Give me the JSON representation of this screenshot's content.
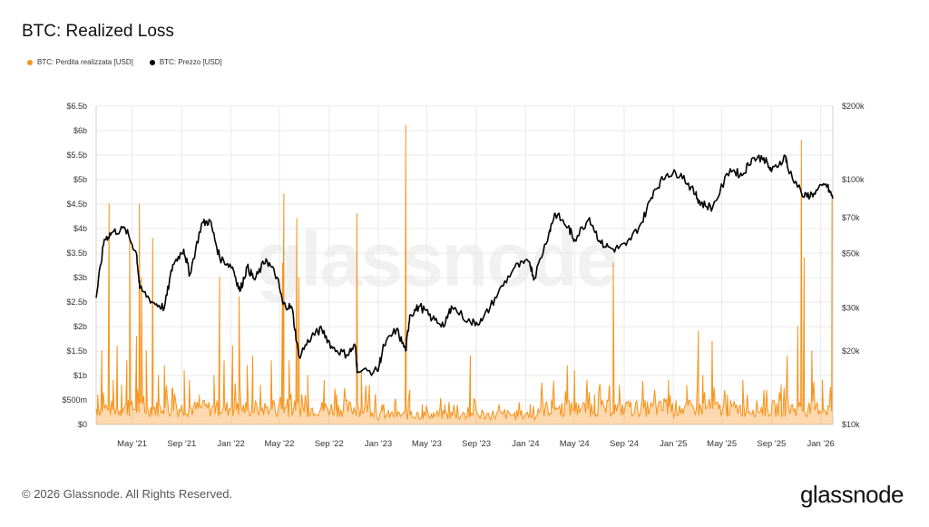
{
  "title": "BTC: Realized Loss",
  "legend": {
    "loss_label": "BTC: Perdita realizzata [USD]",
    "price_label": "BTC: Prezzo [USD]"
  },
  "colors": {
    "loss": "#f7931a",
    "price": "#000000",
    "grid": "#e9e9e9"
  },
  "watermark": "glassnode",
  "footer": {
    "copyright": "© 2026 Glassnode. All Rights Reserved.",
    "logo": "glassnode"
  },
  "chart_data": {
    "type": "line",
    "title": "BTC: Realized Loss",
    "x_ticks": [
      "May '21",
      "Sep '21",
      "Jan '22",
      "May '22",
      "Sep '22",
      "Jan '23",
      "May '23",
      "Sep '23",
      "Jan '24",
      "May '24",
      "Sep '24",
      "Jan '25",
      "May '25",
      "Sep '25",
      "Jan '26"
    ],
    "x_range": [
      "2021-02-01",
      "2026-01-31"
    ],
    "left_axis": {
      "ticks": [
        "$0",
        "$500m",
        "$1b",
        "$1.5b",
        "$2b",
        "$2.5b",
        "$3b",
        "$3.5b",
        "$4b",
        "$4.5b",
        "$5b",
        "$5.5b",
        "$6b",
        "$6.5b"
      ],
      "ylim": [
        0,
        6.5
      ],
      "unit": "billion USD"
    },
    "right_axis": {
      "ticks": [
        "$10k",
        "$20k",
        "$30k",
        "$50k",
        "$70k",
        "$100k",
        "$200k"
      ],
      "ylim": [
        10000,
        200000
      ],
      "scale": "log"
    },
    "grid": true,
    "series": [
      {
        "name": "BTC: Perdita realizzata [USD]",
        "axis": "left",
        "style": "area",
        "baseline_billion": 0.15,
        "points": [
          [
            "2021-02-05",
            0.6
          ],
          [
            "2021-02-15",
            1.5
          ],
          [
            "2021-02-25",
            0.4
          ],
          [
            "2021-03-05",
            4.5
          ],
          [
            "2021-03-15",
            0.9
          ],
          [
            "2021-03-25",
            1.6
          ],
          [
            "2021-04-05",
            0.8
          ],
          [
            "2021-04-18",
            1.3
          ],
          [
            "2021-04-25",
            3.8
          ],
          [
            "2021-05-12",
            1.8
          ],
          [
            "2021-05-19",
            4.5
          ],
          [
            "2021-05-24",
            3.0
          ],
          [
            "2021-06-05",
            1.5
          ],
          [
            "2021-06-21",
            3.8
          ],
          [
            "2021-07-05",
            1.0
          ],
          [
            "2021-07-20",
            1.2
          ],
          [
            "2021-08-10",
            0.7
          ],
          [
            "2021-09-07",
            1.1
          ],
          [
            "2021-09-20",
            0.9
          ],
          [
            "2021-10-15",
            0.6
          ],
          [
            "2021-11-20",
            1.0
          ],
          [
            "2021-12-04",
            3.0
          ],
          [
            "2021-12-15",
            1.3
          ],
          [
            "2022-01-05",
            1.6
          ],
          [
            "2022-01-21",
            2.6
          ],
          [
            "2022-02-10",
            1.2
          ],
          [
            "2022-02-24",
            1.4
          ],
          [
            "2022-03-15",
            0.8
          ],
          [
            "2022-04-11",
            1.3
          ],
          [
            "2022-05-09",
            3.3
          ],
          [
            "2022-05-12",
            4.7
          ],
          [
            "2022-05-25",
            1.3
          ],
          [
            "2022-06-13",
            4.2
          ],
          [
            "2022-06-18",
            3.0
          ],
          [
            "2022-07-10",
            1.0
          ],
          [
            "2022-08-20",
            0.9
          ],
          [
            "2022-09-20",
            0.6
          ],
          [
            "2022-10-15",
            0.5
          ],
          [
            "2022-11-09",
            4.3
          ],
          [
            "2022-11-20",
            1.1
          ],
          [
            "2022-12-10",
            0.8
          ],
          [
            "2023-01-10",
            0.4
          ],
          [
            "2023-02-10",
            0.4
          ],
          [
            "2023-03-10",
            6.1
          ],
          [
            "2023-03-20",
            0.7
          ],
          [
            "2023-04-20",
            0.4
          ],
          [
            "2023-06-15",
            0.4
          ],
          [
            "2023-08-17",
            1.4
          ],
          [
            "2023-09-15",
            0.3
          ],
          [
            "2023-11-10",
            0.3
          ],
          [
            "2024-01-12",
            0.4
          ],
          [
            "2024-03-05",
            0.5
          ],
          [
            "2024-04-13",
            1.2
          ],
          [
            "2024-05-01",
            1.1
          ],
          [
            "2024-06-20",
            0.6
          ],
          [
            "2024-08-05",
            3.3
          ],
          [
            "2024-08-20",
            0.8
          ],
          [
            "2024-10-15",
            0.4
          ],
          [
            "2024-12-20",
            0.9
          ],
          [
            "2025-02-03",
            0.8
          ],
          [
            "2025-03-04",
            1.9
          ],
          [
            "2025-03-15",
            1.0
          ],
          [
            "2025-04-07",
            1.7
          ],
          [
            "2025-05-15",
            0.6
          ],
          [
            "2025-06-22",
            0.9
          ],
          [
            "2025-08-20",
            0.7
          ],
          [
            "2025-09-25",
            0.8
          ],
          [
            "2025-10-10",
            1.4
          ],
          [
            "2025-11-05",
            2.0
          ],
          [
            "2025-11-14",
            5.8
          ],
          [
            "2025-11-21",
            3.4
          ],
          [
            "2025-12-10",
            1.5
          ],
          [
            "2026-01-05",
            0.9
          ],
          [
            "2026-01-29",
            4.7
          ]
        ]
      },
      {
        "name": "BTC: Prezzo [USD]",
        "axis": "right",
        "style": "line",
        "points": [
          [
            "2021-02-01",
            33000
          ],
          [
            "2021-02-21",
            57000
          ],
          [
            "2021-03-13",
            61000
          ],
          [
            "2021-04-14",
            63000
          ],
          [
            "2021-05-12",
            50000
          ],
          [
            "2021-05-20",
            36000
          ],
          [
            "2021-06-22",
            31500
          ],
          [
            "2021-07-20",
            30000
          ],
          [
            "2021-08-10",
            45000
          ],
          [
            "2021-09-06",
            52000
          ],
          [
            "2021-09-21",
            41000
          ],
          [
            "2021-10-20",
            66000
          ],
          [
            "2021-11-10",
            68000
          ],
          [
            "2021-12-04",
            48000
          ],
          [
            "2022-01-05",
            44000
          ],
          [
            "2022-01-23",
            35000
          ],
          [
            "2022-02-10",
            44000
          ],
          [
            "2022-03-01",
            39000
          ],
          [
            "2022-03-29",
            47500
          ],
          [
            "2022-04-25",
            40000
          ],
          [
            "2022-05-10",
            31000
          ],
          [
            "2022-06-01",
            30000
          ],
          [
            "2022-06-18",
            19000
          ],
          [
            "2022-07-20",
            23000
          ],
          [
            "2022-08-14",
            24500
          ],
          [
            "2022-09-10",
            20500
          ],
          [
            "2022-10-15",
            19300
          ],
          [
            "2022-11-05",
            21000
          ],
          [
            "2022-11-10",
            16500
          ],
          [
            "2022-12-30",
            16500
          ],
          [
            "2023-01-15",
            21000
          ],
          [
            "2023-02-15",
            24500
          ],
          [
            "2023-03-10",
            20000
          ],
          [
            "2023-03-20",
            28000
          ],
          [
            "2023-04-14",
            30500
          ],
          [
            "2023-05-15",
            27000
          ],
          [
            "2023-06-15",
            25500
          ],
          [
            "2023-07-01",
            30500
          ],
          [
            "2023-08-18",
            26000
          ],
          [
            "2023-09-15",
            26500
          ],
          [
            "2023-10-25",
            34500
          ],
          [
            "2023-12-05",
            44000
          ],
          [
            "2024-01-11",
            46000
          ],
          [
            "2024-01-22",
            39500
          ],
          [
            "2024-02-28",
            61000
          ],
          [
            "2024-03-14",
            73000
          ],
          [
            "2024-04-15",
            64000
          ],
          [
            "2024-05-01",
            57000
          ],
          [
            "2024-06-07",
            70000
          ],
          [
            "2024-07-05",
            55000
          ],
          [
            "2024-08-05",
            52000
          ],
          [
            "2024-09-06",
            54000
          ],
          [
            "2024-10-15",
            67000
          ],
          [
            "2024-11-13",
            90000
          ],
          [
            "2024-12-17",
            106000
          ],
          [
            "2025-01-20",
            106000
          ],
          [
            "2025-02-25",
            87000
          ],
          [
            "2025-03-10",
            80000
          ],
          [
            "2025-04-08",
            77000
          ],
          [
            "2025-05-22",
            111000
          ],
          [
            "2025-06-20",
            104000
          ],
          [
            "2025-07-14",
            122000
          ],
          [
            "2025-08-13",
            123000
          ],
          [
            "2025-09-01",
            108000
          ],
          [
            "2025-10-06",
            125000
          ],
          [
            "2025-10-11",
            112000
          ],
          [
            "2025-11-21",
            85000
          ],
          [
            "2025-12-15",
            88000
          ],
          [
            "2026-01-14",
            96000
          ],
          [
            "2026-01-31",
            84000
          ]
        ]
      }
    ]
  }
}
